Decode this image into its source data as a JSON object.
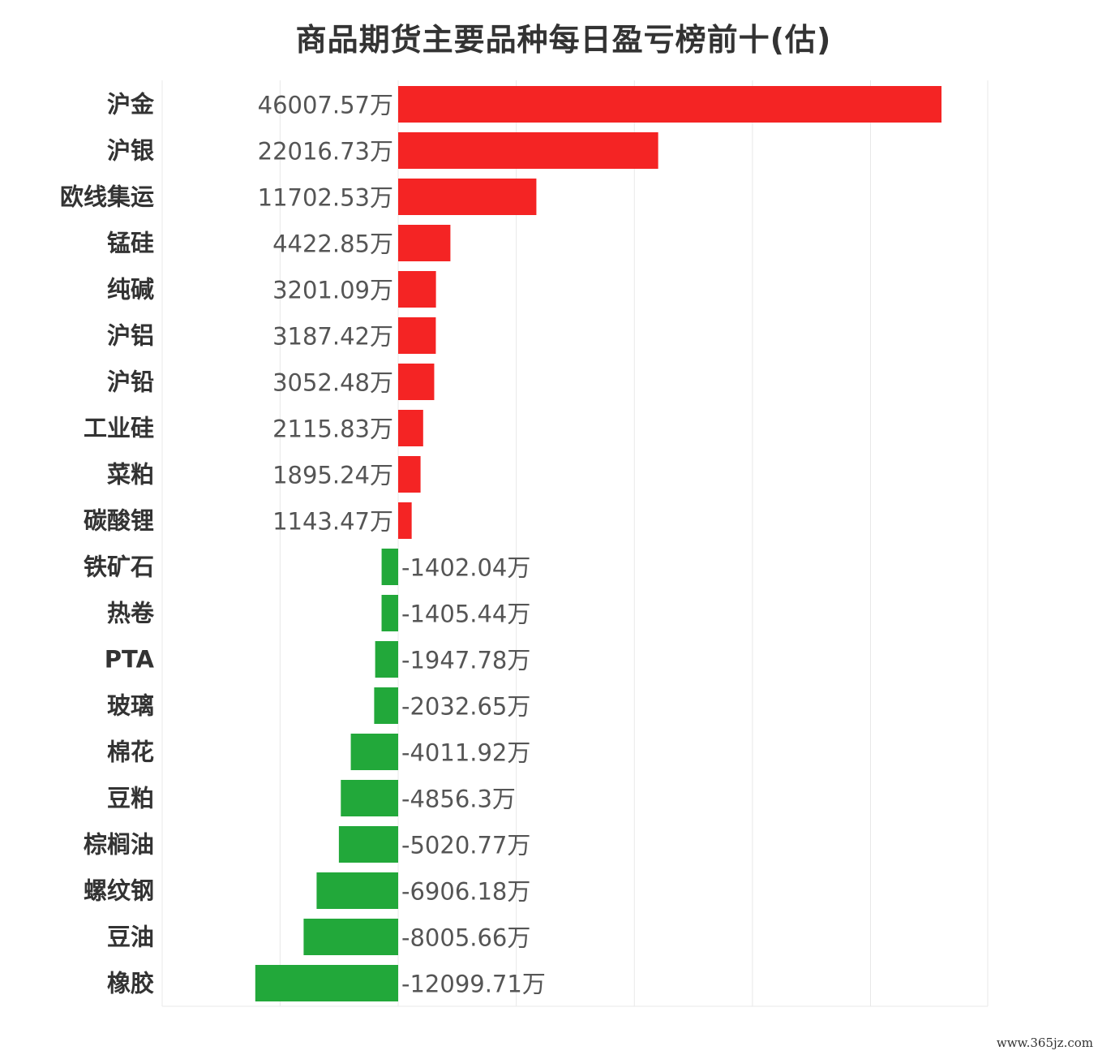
{
  "title": "商品期货主要品种每日盈亏榜前十(估)",
  "watermark": "www.365jz.com",
  "unit_suffix": "万",
  "colors": {
    "positive": "#f42424",
    "negative": "#22a83a",
    "grid": "#e8e8e8"
  },
  "chart_data": {
    "type": "bar",
    "orientation": "horizontal",
    "title": "商品期货主要品种每日盈亏榜前十(估)",
    "xlim": [
      -20000,
      50000
    ],
    "grid": true,
    "categories": [
      "沪金",
      "沪银",
      "欧线集运",
      "锰硅",
      "纯碱",
      "沪铝",
      "沪铅",
      "工业硅",
      "菜粕",
      "碳酸锂",
      "铁矿石",
      "热卷",
      "PTA",
      "玻璃",
      "棉花",
      "豆粕",
      "棕榈油",
      "螺纹钢",
      "豆油",
      "橡胶"
    ],
    "values": [
      46007.57,
      22016.73,
      11702.53,
      4422.85,
      3201.09,
      3187.42,
      3052.48,
      2115.83,
      1895.24,
      1143.47,
      -1402.04,
      -1405.44,
      -1947.78,
      -2032.65,
      -4011.92,
      -4856.3,
      -5020.77,
      -6906.18,
      -8005.66,
      -12099.71
    ],
    "value_labels": [
      "46007.57万",
      "22016.73万",
      "11702.53万",
      "4422.85万",
      "3201.09万",
      "3187.42万",
      "3052.48万",
      "2115.83万",
      "1895.24万",
      "1143.47万",
      "-1402.04万",
      "-1405.44万",
      "-1947.78万",
      "-2032.65万",
      "-4011.92万",
      "-4856.3万",
      "-5020.77万",
      "-6906.18万",
      "-8005.66万",
      "-12099.71万"
    ]
  }
}
